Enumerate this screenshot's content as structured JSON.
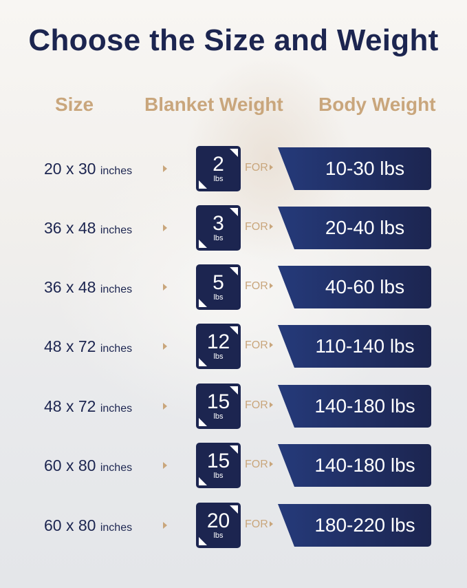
{
  "title": "Choose the Size and Weight",
  "headers": {
    "size": "Size",
    "blanket": "Blanket Weight",
    "body": "Body Weight"
  },
  "for_label": "FOR",
  "colors": {
    "navy": "#1c2550",
    "tan": "#c9a67c"
  },
  "rows": [
    {
      "size": "20 x 30",
      "unit": "inches",
      "weight": "2",
      "weight_unit": "lbs",
      "body": "10-30 lbs"
    },
    {
      "size": "36 x 48",
      "unit": "inches",
      "weight": "3",
      "weight_unit": "lbs",
      "body": "20-40 lbs"
    },
    {
      "size": "36 x 48",
      "unit": "inches",
      "weight": "5",
      "weight_unit": "lbs",
      "body": "40-60 lbs"
    },
    {
      "size": "48 x 72",
      "unit": "inches",
      "weight": "12",
      "weight_unit": "lbs",
      "body": "110-140 lbs"
    },
    {
      "size": "48 x 72",
      "unit": "inches",
      "weight": "15",
      "weight_unit": "lbs",
      "body": "140-180 lbs"
    },
    {
      "size": "60 x 80",
      "unit": "inches",
      "weight": "15",
      "weight_unit": "lbs",
      "body": "140-180 lbs"
    },
    {
      "size": "60 x 80",
      "unit": "inches",
      "weight": "20",
      "weight_unit": "lbs",
      "body": "180-220 lbs"
    }
  ]
}
